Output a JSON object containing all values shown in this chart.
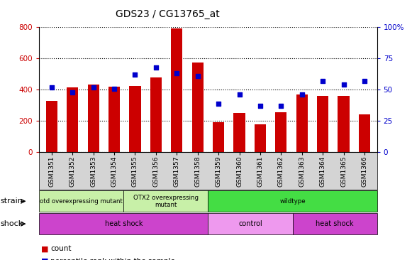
{
  "title": "GDS23 / CG13765_at",
  "samples": [
    "GSM1351",
    "GSM1352",
    "GSM1353",
    "GSM1354",
    "GSM1355",
    "GSM1356",
    "GSM1357",
    "GSM1358",
    "GSM1359",
    "GSM1360",
    "GSM1361",
    "GSM1362",
    "GSM1363",
    "GSM1364",
    "GSM1365",
    "GSM1366"
  ],
  "counts": [
    330,
    415,
    435,
    420,
    425,
    480,
    795,
    575,
    190,
    250,
    180,
    255,
    370,
    360,
    360,
    240
  ],
  "percentiles": [
    52,
    48,
    52,
    51,
    62,
    68,
    63,
    61,
    39,
    46,
    37,
    37,
    46,
    57,
    54,
    57
  ],
  "bar_color": "#cc0000",
  "dot_color": "#0000cc",
  "ylim_left": [
    0,
    800
  ],
  "ylim_right": [
    0,
    100
  ],
  "yticks_left": [
    0,
    200,
    400,
    600,
    800
  ],
  "yticks_right": [
    0,
    25,
    50,
    75,
    100
  ],
  "yticklabels_right": [
    "0",
    "25",
    "50",
    "75",
    "100%"
  ],
  "strain_groups": [
    {
      "label": "otd overexpressing mutant",
      "start": 0,
      "end": 4,
      "color": "#c8f0a8"
    },
    {
      "label": "OTX2 overexpressing\nmutant",
      "start": 4,
      "end": 8,
      "color": "#c8f0a8"
    },
    {
      "label": "wildtype",
      "start": 8,
      "end": 16,
      "color": "#44dd44"
    }
  ],
  "shock_groups": [
    {
      "label": "heat shock",
      "start": 0,
      "end": 8,
      "color": "#cc44cc"
    },
    {
      "label": "control",
      "start": 8,
      "end": 12,
      "color": "#ee99ee"
    },
    {
      "label": "heat shock",
      "start": 12,
      "end": 16,
      "color": "#cc44cc"
    }
  ],
  "strain_label": "strain",
  "shock_label": "shock",
  "legend_count_color": "#cc0000",
  "legend_pct_color": "#0000cc",
  "xtick_bg": "#d4d4d4",
  "plot_bg": "#ffffff"
}
